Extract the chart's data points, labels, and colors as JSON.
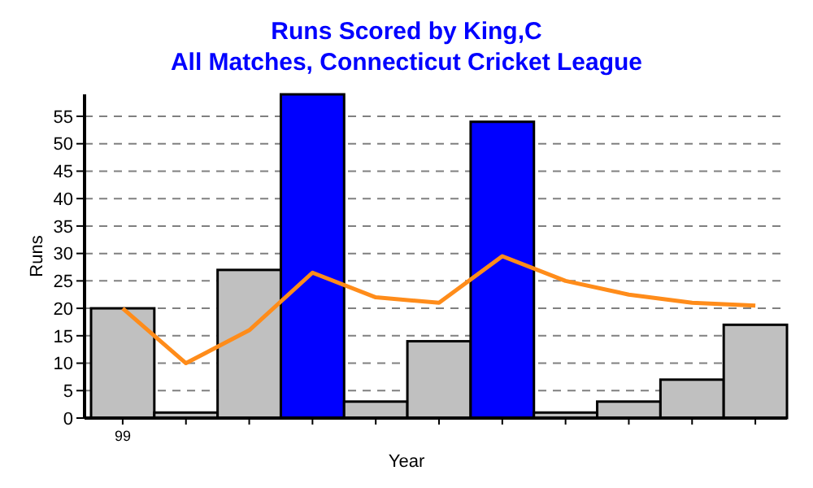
{
  "chart_data": {
    "type": "bar",
    "title": "Runs Scored by King,C",
    "subtitle": "All Matches, Connecticut Cricket League",
    "xlabel": "Year",
    "ylabel": "Runs",
    "categories": [
      "99",
      null,
      null,
      null,
      null,
      null,
      null,
      null,
      null,
      null,
      null
    ],
    "series": [
      {
        "colors": [
          "#c0c0c0",
          "#c0c0c0",
          "#c0c0c0",
          "#0000ff",
          "#c0c0c0",
          "#c0c0c0",
          "#0000ff",
          "#c0c0c0",
          "#c0c0c0",
          "#c0c0c0",
          "#c0c0c0"
        ],
        "values": [
          20,
          1,
          27,
          59,
          3,
          14,
          54,
          1,
          3,
          7,
          17
        ]
      },
      {
        "type": "line",
        "color": "#ff8c1a",
        "values": [
          20,
          10,
          16,
          26.5,
          22,
          21,
          29.5,
          25,
          22.5,
          21,
          20.5
        ]
      }
    ],
    "ylim": [
      0,
      59
    ],
    "yticks": [
      0,
      5,
      10,
      15,
      20,
      25,
      30,
      35,
      40,
      45,
      50,
      55
    ],
    "grid": "y"
  }
}
